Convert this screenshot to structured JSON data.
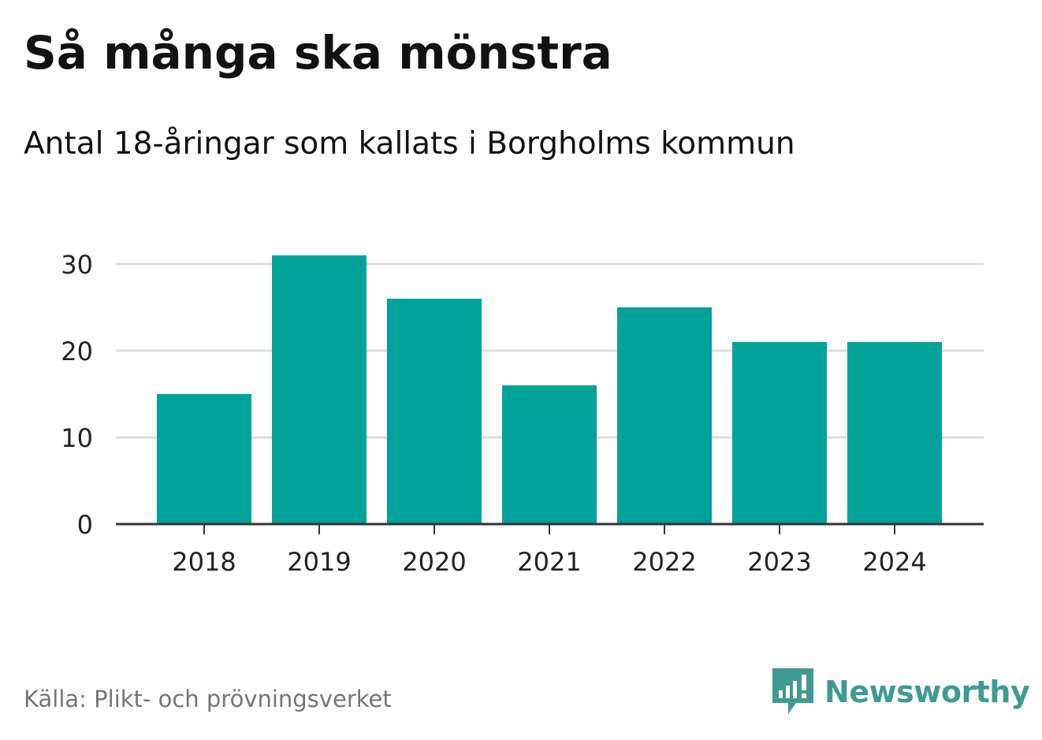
{
  "header": {
    "title": "Så många ska mönstra",
    "subtitle": "Antal 18-åringar som kallats i Borgholms kommun"
  },
  "footer": {
    "source": "Källa: Plikt- och prövningsverket",
    "brand_name": "Newsworthy",
    "brand_icon": "newsworthy-logo-icon"
  },
  "colors": {
    "bar": "#00a39a",
    "grid": "#dcdcdc",
    "axis": "#333333",
    "tick_text": "#222222",
    "brand": "#3f9a93",
    "source_text": "#757575"
  },
  "chart_data": {
    "type": "bar",
    "categories": [
      "2018",
      "2019",
      "2020",
      "2021",
      "2022",
      "2023",
      "2024"
    ],
    "values": [
      15,
      31,
      26,
      16,
      25,
      21,
      21
    ],
    "title": "Så många ska mönstra",
    "subtitle": "Antal 18-åringar som kallats i Borgholms kommun",
    "xlabel": "",
    "ylabel": "",
    "ylim": [
      0,
      30
    ],
    "yticks": [
      0,
      10,
      20,
      30
    ],
    "grid": true,
    "legend": "none"
  }
}
